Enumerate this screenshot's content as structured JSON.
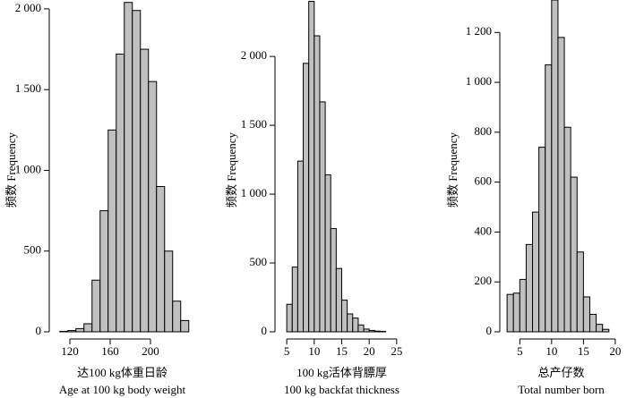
{
  "chart_data": [
    {
      "type": "histogram",
      "ylabel": "频数  Frequency",
      "xlabel": "达100 kg体重日龄",
      "xlabel_en": "Age at 100 kg body weight",
      "color": "#c0c0c0",
      "edgecolor": "#000000",
      "bins": [
        110,
        118,
        126,
        134,
        142,
        150,
        158,
        166,
        174,
        182,
        190,
        198,
        206,
        214,
        222,
        230,
        238
      ],
      "values": [
        3,
        8,
        20,
        50,
        320,
        750,
        1250,
        1720,
        2040,
        1990,
        1750,
        1550,
        900,
        500,
        190,
        70
      ],
      "xlim": [
        104,
        240
      ],
      "xticks": [
        120,
        160,
        200
      ],
      "ylim": [
        0,
        2055
      ],
      "yticks": [
        0,
        500,
        {
          "value": 1000,
          "label": "1 000"
        },
        {
          "value": 1500,
          "label": "1 500"
        },
        {
          "value": 2000,
          "label": "2 000"
        }
      ]
    },
    {
      "type": "histogram",
      "ylabel": "频数  Frequency",
      "xlabel": "100 kg活体背膘厚",
      "xlabel_en": "100 kg backfat thickness",
      "color": "#c0c0c0",
      "edgecolor": "#000000",
      "bins": [
        5,
        6,
        7,
        8,
        9,
        10,
        11,
        12,
        13,
        14,
        15,
        16,
        17,
        18,
        19,
        20,
        21,
        22,
        23
      ],
      "values": [
        200,
        470,
        1240,
        1950,
        2400,
        2150,
        1670,
        1140,
        750,
        460,
        230,
        130,
        100,
        50,
        20,
        10,
        5,
        3
      ],
      "xlim": [
        4,
        26
      ],
      "xticks": [
        5,
        10,
        15,
        20,
        25
      ],
      "ylim": [
        0,
        2410
      ],
      "yticks": [
        0,
        500,
        {
          "value": 1000,
          "label": "1 000"
        },
        {
          "value": 1500,
          "label": "1 500"
        },
        {
          "value": 2000,
          "label": "2 000"
        }
      ]
    },
    {
      "type": "histogram",
      "ylabel": "频数  Frequency",
      "xlabel": "总产仔数",
      "xlabel_en": "Total number born",
      "color": "#c0c0c0",
      "edgecolor": "#000000",
      "bins": [
        3,
        4,
        5,
        6,
        7,
        8,
        9,
        10,
        11,
        12,
        13,
        14,
        15,
        16,
        17,
        18,
        19
      ],
      "values": [
        150,
        155,
        210,
        350,
        480,
        740,
        1070,
        1330,
        1180,
        820,
        620,
        320,
        140,
        70,
        30,
        10
      ],
      "xlim": [
        2,
        21
      ],
      "xticks": [
        5,
        10,
        15,
        20
      ],
      "ylim": [
        0,
        1330
      ],
      "yticks": [
        0,
        200,
        400,
        600,
        800,
        {
          "value": 1000,
          "label": "1 000"
        },
        {
          "value": 1200,
          "label": "1 200"
        }
      ]
    }
  ]
}
